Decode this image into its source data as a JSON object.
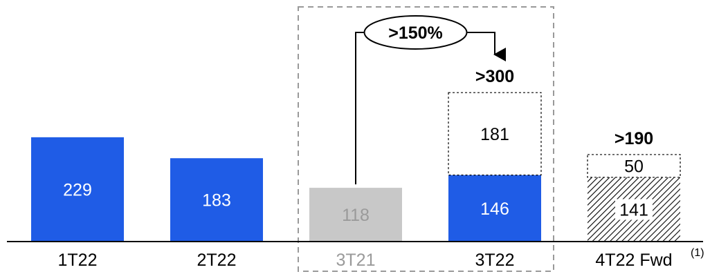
{
  "chart_data": {
    "type": "bar",
    "categories": [
      "1T22",
      "2T22",
      "3T21",
      "3T22",
      "4T22 Fwd"
    ],
    "footnote_marker": "(1)",
    "segments": [
      {
        "category": "1T22",
        "value": 229,
        "label": "229",
        "style": "solid",
        "color": "#1f5ce6",
        "text_color": "#ffffff"
      },
      {
        "category": "2T22",
        "value": 183,
        "label": "183",
        "style": "solid",
        "color": "#1f5ce6",
        "text_color": "#ffffff"
      },
      {
        "category": "3T21",
        "value": 118,
        "label": "118",
        "style": "solid",
        "color": "#c8c8c8",
        "text_color": "#9a9a9a"
      },
      {
        "category": "3T22",
        "value": 146,
        "label": "146",
        "style": "solid",
        "color": "#1f5ce6",
        "text_color": "#ffffff"
      },
      {
        "category": "3T22",
        "value": 181,
        "label": "181",
        "style": "dashed-outline",
        "color": "#ffffff",
        "text_color": "#000000"
      },
      {
        "category": "4T22 Fwd",
        "value": 141,
        "label": "141",
        "style": "hatched",
        "color": "#000000",
        "text_color": "#000000"
      },
      {
        "category": "4T22 Fwd",
        "value": 50,
        "label": "50",
        "style": "dashed-outline",
        "color": "#ffffff",
        "text_color": "#000000"
      }
    ],
    "totals": [
      {
        "category": "3T22",
        "label": ">300"
      },
      {
        "category": "4T22 Fwd",
        "label": ">190"
      }
    ],
    "growth_annotation": {
      "label": ">150%",
      "from": "3T21",
      "to": "3T22"
    },
    "highlight_box": {
      "categories": [
        "3T21",
        "3T22"
      ]
    },
    "ylim": [
      0,
      380
    ],
    "axis_label_colors": {
      "3T21": "#9a9a9a"
    },
    "colors": {
      "primary": "#1f5ce6",
      "muted": "#c8c8c8",
      "text": "#000000",
      "muted_text": "#9a9a9a",
      "dashed": "#999999"
    }
  }
}
